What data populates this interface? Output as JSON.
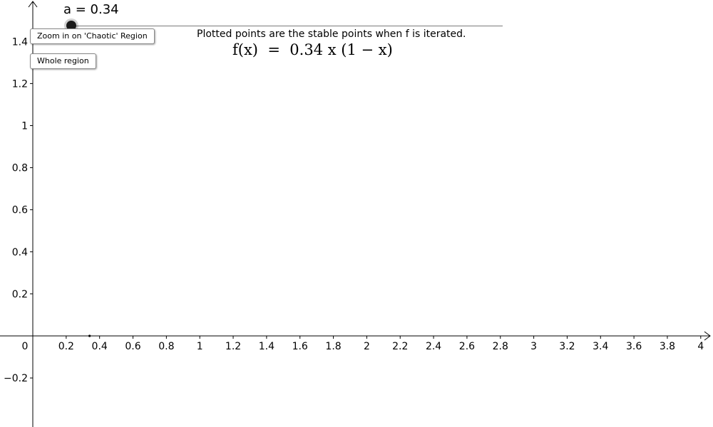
{
  "slider": {
    "label": "a = 0.34",
    "value": 0.34,
    "min": 0,
    "max": 4
  },
  "buttons": {
    "zoom_label": "Zoom in on 'Chaotic' Region",
    "whole_label": "Whole region"
  },
  "note": "Plotted points are the stable points when f is iterated.",
  "formula": "f(x)  =  0.34 x (1 − x)",
  "chart_data": {
    "type": "scatter",
    "title": "",
    "xlabel": "",
    "ylabel": "",
    "xlim": [
      0,
      4
    ],
    "ylim": [
      -0.4,
      1.6
    ],
    "x_ticks": [
      0.2,
      0.4,
      0.6,
      0.8,
      1,
      1.2,
      1.4,
      1.6,
      1.8,
      2,
      2.2,
      2.4,
      2.6,
      2.8,
      3,
      3.2,
      3.4,
      3.6,
      3.8,
      4
    ],
    "x_tick_labels": [
      "0.2",
      "0.4",
      "0.6",
      "0.8",
      "1",
      "1.2",
      "1.4",
      "1.6",
      "1.8",
      "2",
      "2.2",
      "2.4",
      "2.6",
      "2.8",
      "3",
      "3.2",
      "3.4",
      "3.6",
      "3.8",
      "4"
    ],
    "y_ticks": [
      -0.2,
      0.2,
      0.4,
      0.6,
      0.8,
      1,
      1.2,
      1.4
    ],
    "y_tick_labels": [
      "−0.2",
      "0.2",
      "0.4",
      "0.6",
      "0.8",
      "1",
      "1.2",
      "1.4"
    ],
    "origin_label": "0",
    "grid": false,
    "series": [
      {
        "points": [
          [
            0.34,
            0
          ]
        ]
      }
    ]
  }
}
